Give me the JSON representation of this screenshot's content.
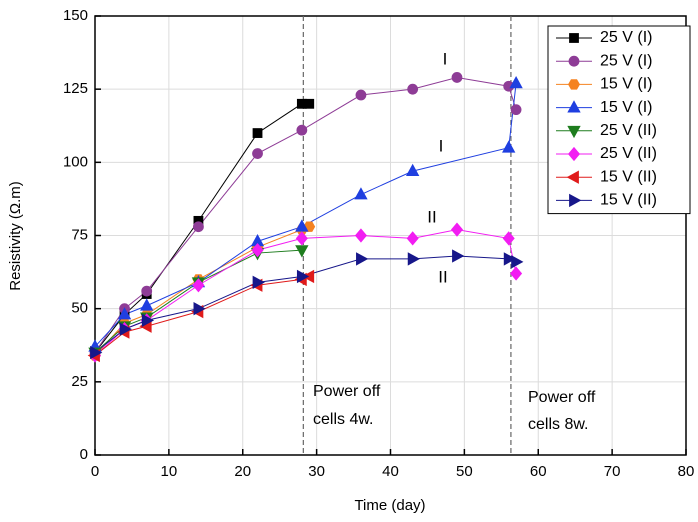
{
  "chart_data": {
    "type": "line",
    "xlabel": "Time (day)",
    "ylabel": "Resistivity (Ω.m)",
    "xlim": [
      0,
      80
    ],
    "ylim": [
      0,
      150
    ],
    "xticks": [
      0,
      10,
      20,
      30,
      40,
      50,
      60,
      70,
      80
    ],
    "yticks": [
      0,
      25,
      50,
      75,
      100,
      125,
      150
    ],
    "grid": true,
    "legend": "upper right",
    "vlines": [
      28.2,
      56.3
    ],
    "annotations": [
      "I",
      "I",
      "II",
      "II",
      "Power off",
      "cells 4w.",
      "Power off",
      "cells 8w."
    ],
    "series": [
      {
        "name": "25 V (I)",
        "color": "#000000",
        "marker": "square",
        "x": [
          0,
          4,
          7,
          14,
          22,
          28,
          29
        ],
        "values": [
          35,
          48,
          55,
          80,
          110,
          120,
          120
        ]
      },
      {
        "name": "25 V (I)",
        "color": "#8e3c96",
        "marker": "circle",
        "x": [
          0,
          4,
          7,
          14,
          22,
          28,
          36,
          43,
          49,
          56,
          57
        ],
        "values": [
          35,
          50,
          56,
          78,
          103,
          111,
          123,
          125,
          129,
          126,
          118
        ]
      },
      {
        "name": "15 V (I)",
        "color": "#f58220",
        "marker": "hexagon",
        "x": [
          0,
          4,
          7,
          14,
          22,
          28,
          29
        ],
        "values": [
          34,
          45,
          48,
          60,
          71,
          77,
          78
        ]
      },
      {
        "name": "15 V (I)",
        "color": "#1f3fe0",
        "marker": "triangle-up",
        "x": [
          0,
          4,
          7,
          14,
          22,
          28,
          36,
          43,
          56,
          57
        ],
        "values": [
          37,
          48,
          51,
          59,
          73,
          78,
          89,
          97,
          105,
          127
        ]
      },
      {
        "name": "25 V (II)",
        "color": "#1e7d1e",
        "marker": "triangle-down",
        "x": [
          0,
          4,
          7,
          14,
          22,
          28
        ],
        "values": [
          35,
          44,
          47,
          59,
          69,
          70
        ]
      },
      {
        "name": "25 V (II)",
        "color": "#f21df2",
        "marker": "diamond",
        "x": [
          0,
          4,
          7,
          14,
          22,
          28,
          36,
          43,
          49,
          56,
          57
        ],
        "values": [
          34,
          43,
          46,
          58,
          70,
          74,
          75,
          74,
          77,
          74,
          62
        ]
      },
      {
        "name": "15 V (II)",
        "color": "#e01b1b",
        "marker": "triangle-left",
        "x": [
          0,
          4,
          7,
          14,
          22,
          28,
          29
        ],
        "values": [
          34,
          42,
          44,
          49,
          58,
          60,
          61
        ]
      },
      {
        "name": "15 V (II)",
        "color": "#17178a",
        "marker": "triangle-right",
        "x": [
          0,
          4,
          7,
          14,
          22,
          28,
          36,
          43,
          49,
          56,
          57
        ],
        "values": [
          35,
          43,
          46,
          50,
          59,
          61,
          67,
          67,
          68,
          67,
          66
        ]
      }
    ]
  }
}
